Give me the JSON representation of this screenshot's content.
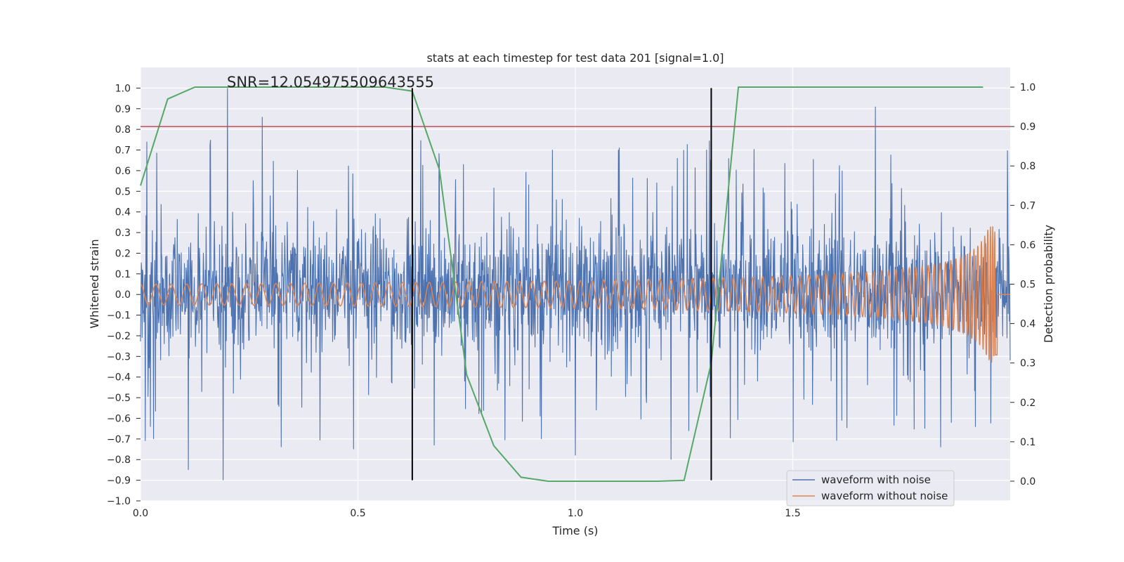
{
  "chart_data": {
    "type": "line",
    "title": "stats at each timestep for test data 201 [signal=1.0]",
    "xlabel": "Time (s)",
    "ylabel_left": "Whitened strain",
    "ylabel_right": "Detection probability",
    "annotation": "SNR=12.054975509643555",
    "xlim": [
      0.0,
      2.0
    ],
    "ylim_left": [
      -1.0,
      1.1
    ],
    "ylim_right": [
      -0.05,
      1.05
    ],
    "x_ticks": [
      "0.0",
      "0.5",
      "1.0",
      "1.5"
    ],
    "y_ticks_left": [
      "-1.0",
      "-0.9",
      "-0.8",
      "-0.7",
      "-0.6",
      "-0.5",
      "-0.4",
      "-0.3",
      "-0.2",
      "-0.1",
      "0.0",
      "0.1",
      "0.2",
      "0.3",
      "0.4",
      "0.5",
      "0.6",
      "0.7",
      "0.8",
      "0.9",
      "1.0"
    ],
    "y_ticks_right": [
      "0.0",
      "0.1",
      "0.2",
      "0.3",
      "0.4",
      "0.5",
      "0.6",
      "0.7",
      "0.8",
      "0.9",
      "1.0"
    ],
    "grid": true,
    "legend_position": "lower-right",
    "series": [
      {
        "name": "waveform with noise",
        "color": "#4c72b0",
        "axis": "left",
        "description": "dense noisy strain signal, amplitude mostly within -0.9..1.0",
        "x_range": [
          0.0,
          2.0
        ],
        "spikes": [
          [
            0.03,
            0.9
          ],
          [
            0.2,
            1.0
          ],
          [
            0.28,
            0.86
          ],
          [
            0.11,
            -0.85
          ],
          [
            0.19,
            -0.9
          ],
          [
            0.03,
            -0.7
          ],
          [
            0.49,
            -0.75
          ],
          [
            1.0,
            -0.78
          ],
          [
            1.22,
            -0.8
          ],
          [
            1.84,
            -0.74
          ],
          [
            1.69,
            0.91
          ]
        ]
      },
      {
        "name": "waveform without noise",
        "color": "#dd8452",
        "axis": "left",
        "description": "chirp signal with growing amplitude and frequency, ends near 1.97 s",
        "amplitude_start": 0.05,
        "amplitude_peak": 0.33,
        "end_time": 1.97
      },
      {
        "name": "",
        "color": "#55a868",
        "axis": "right",
        "x": [
          0.0,
          0.0625,
          0.125,
          0.1875,
          0.25,
          0.3125,
          0.375,
          0.4375,
          0.5,
          0.5625,
          0.625,
          0.6875,
          0.75,
          0.8125,
          0.875,
          0.9375,
          1.0,
          1.0625,
          1.125,
          1.1875,
          1.25,
          1.3125,
          1.375,
          1.4375,
          1.5,
          1.5625,
          1.625,
          1.6875,
          1.75,
          1.8125,
          1.875,
          1.9375
        ],
        "y": [
          0.75,
          0.97,
          1.0,
          1.0,
          1.0,
          1.0,
          1.0,
          1.0,
          1.0,
          1.0,
          0.99,
          0.79,
          0.27,
          0.09,
          0.01,
          0.0,
          0.0,
          0.0,
          0.0,
          0.0,
          0.002,
          0.3,
          1.0,
          1.0,
          1.0,
          1.0,
          1.0,
          1.0,
          1.0,
          1.0,
          1.0,
          1.0
        ]
      }
    ],
    "threshold_line": {
      "axis": "right",
      "value": 0.9,
      "color": "#c44e52"
    },
    "vertical_markers": {
      "x": [
        0.625,
        1.3125
      ],
      "ymin": -0.9,
      "ymax": 1.0,
      "color": "#000000"
    }
  }
}
